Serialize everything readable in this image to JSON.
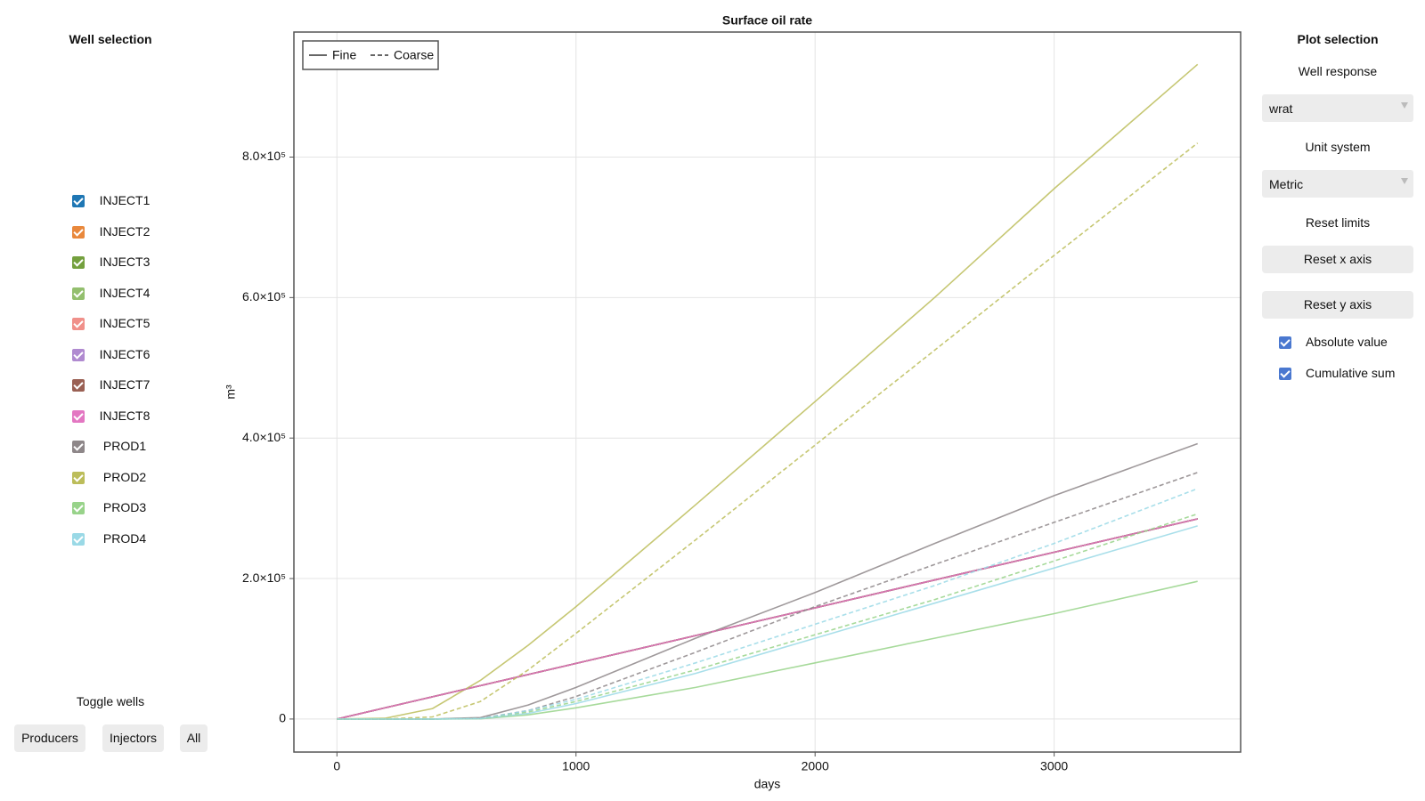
{
  "left_panel": {
    "title": "Well selection",
    "toggle_title": "Toggle wells",
    "buttons": [
      "Producers",
      "Injectors",
      "All"
    ]
  },
  "chart_data": {
    "type": "line",
    "title": "Surface oil rate",
    "xlabel": "days",
    "ylabel": "m³",
    "xlim": [
      -180,
      3780
    ],
    "ylim": [
      -47000,
      978000
    ],
    "xticks": [
      0,
      1000,
      2000,
      3000
    ],
    "yticks": [
      0,
      {
        "value": 200000,
        "label": "2.0×10⁵"
      },
      {
        "value": 400000,
        "label": "4.0×10⁵"
      },
      {
        "value": 600000,
        "label": "6.0×10⁵"
      },
      {
        "value": 800000,
        "label": "8.0×10⁵"
      }
    ],
    "grid": true,
    "line_styles": [
      {
        "name": "Fine",
        "dash": "solid"
      },
      {
        "name": "Coarse",
        "dash": "dashed"
      }
    ],
    "x": [
      0,
      200,
      400,
      600,
      800,
      1000,
      1500,
      2000,
      2500,
      3000,
      3600
    ],
    "series": [
      {
        "name": "INJECT1",
        "color": "#1f77b4",
        "checked": true,
        "values": [
          0,
          15800,
          31700,
          47500,
          63300,
          79200,
          118800,
          158300,
          197900,
          237500,
          285000
        ],
        "coarse": [
          0,
          15800,
          31700,
          47500,
          63300,
          79200,
          118800,
          158300,
          197900,
          237500,
          285000
        ]
      },
      {
        "name": "INJECT2",
        "color": "#e9883c",
        "checked": true,
        "values": [
          0,
          15800,
          31700,
          47500,
          63300,
          79200,
          118800,
          158300,
          197900,
          237500,
          285000
        ],
        "coarse": [
          0,
          15800,
          31700,
          47500,
          63300,
          79200,
          118800,
          158300,
          197900,
          237500,
          285000
        ]
      },
      {
        "name": "INJECT3",
        "color": "#74a03e",
        "checked": true,
        "values": [
          0,
          15800,
          31700,
          47500,
          63300,
          79200,
          118800,
          158300,
          197900,
          237500,
          285000
        ],
        "coarse": [
          0,
          15800,
          31700,
          47500,
          63300,
          79200,
          118800,
          158300,
          197900,
          237500,
          285000
        ]
      },
      {
        "name": "INJECT4",
        "color": "#93bf6e",
        "checked": true,
        "values": [
          0,
          15800,
          31700,
          47500,
          63300,
          79200,
          118800,
          158300,
          197900,
          237500,
          285000
        ],
        "coarse": [
          0,
          15800,
          31700,
          47500,
          63300,
          79200,
          118800,
          158300,
          197900,
          237500,
          285000
        ]
      },
      {
        "name": "INJECT5",
        "color": "#f0908a",
        "checked": true,
        "values": [
          0,
          15800,
          31700,
          47500,
          63300,
          79200,
          118800,
          158300,
          197900,
          237500,
          285000
        ],
        "coarse": [
          0,
          15800,
          31700,
          47500,
          63300,
          79200,
          118800,
          158300,
          197900,
          237500,
          285000
        ]
      },
      {
        "name": "INJECT6",
        "color": "#b08ad0",
        "checked": true,
        "values": [
          0,
          15800,
          31700,
          47500,
          63300,
          79200,
          118800,
          158300,
          197900,
          237500,
          285000
        ],
        "coarse": [
          0,
          15800,
          31700,
          47500,
          63300,
          79200,
          118800,
          158300,
          197900,
          237500,
          285000
        ]
      },
      {
        "name": "INJECT7",
        "color": "#9a6054",
        "checked": true,
        "values": [
          0,
          15800,
          31700,
          47500,
          63300,
          79200,
          118800,
          158300,
          197900,
          237500,
          285000
        ],
        "coarse": [
          0,
          15800,
          31700,
          47500,
          63300,
          79200,
          118800,
          158300,
          197900,
          237500,
          285000
        ]
      },
      {
        "name": "INJECT8",
        "color": "#e377c2",
        "checked": true,
        "values": [
          0,
          15800,
          31700,
          47500,
          63300,
          79200,
          118800,
          158300,
          197900,
          237500,
          285000
        ],
        "coarse": [
          0,
          15800,
          31700,
          47500,
          63300,
          79200,
          118800,
          158300,
          197900,
          237500,
          285000
        ]
      },
      {
        "name": "PROD1",
        "color": "#8e8789",
        "checked": true,
        "values": [
          0,
          0,
          0,
          2000,
          20000,
          45000,
          115000,
          180000,
          250000,
          318000,
          392000
        ],
        "coarse": [
          0,
          0,
          0,
          1000,
          12000,
          32000,
          95000,
          160000,
          220000,
          280000,
          351000
        ]
      },
      {
        "name": "PROD2",
        "color": "#bcbd5a",
        "checked": true,
        "values": [
          0,
          1000,
          15000,
          55000,
          105000,
          160000,
          305000,
          452000,
          600000,
          755000,
          932000
        ],
        "coarse": [
          0,
          0,
          3000,
          25000,
          70000,
          122000,
          255000,
          390000,
          525000,
          660000,
          820000
        ]
      },
      {
        "name": "PROD3",
        "color": "#98d38a",
        "checked": true,
        "values": [
          0,
          0,
          0,
          300,
          6000,
          16000,
          45000,
          80000,
          115000,
          150000,
          196000
        ],
        "coarse": [
          0,
          0,
          0,
          600,
          10000,
          25000,
          70000,
          120000,
          170000,
          225000,
          292000
        ]
      },
      {
        "name": "PROD4",
        "color": "#9ad9e6",
        "checked": true,
        "values": [
          0,
          0,
          0,
          500,
          8000,
          22000,
          65000,
          115000,
          165000,
          215000,
          275000
        ],
        "coarse": [
          0,
          0,
          0,
          800,
          12000,
          28000,
          80000,
          135000,
          190000,
          250000,
          328000
        ]
      }
    ]
  },
  "right_panel": {
    "title": "Plot selection",
    "response_label": "Well response",
    "response_value": "wrat",
    "unit_label": "Unit system",
    "unit_value": "Metric",
    "reset_label": "Reset limits",
    "reset_buttons": [
      "Reset x axis",
      "Reset y axis"
    ],
    "checkboxes": [
      {
        "label": "Absolute value",
        "checked": true,
        "color": "#4a78d0"
      },
      {
        "label": "Cumulative sum",
        "checked": true,
        "color": "#4a78d0"
      }
    ]
  }
}
